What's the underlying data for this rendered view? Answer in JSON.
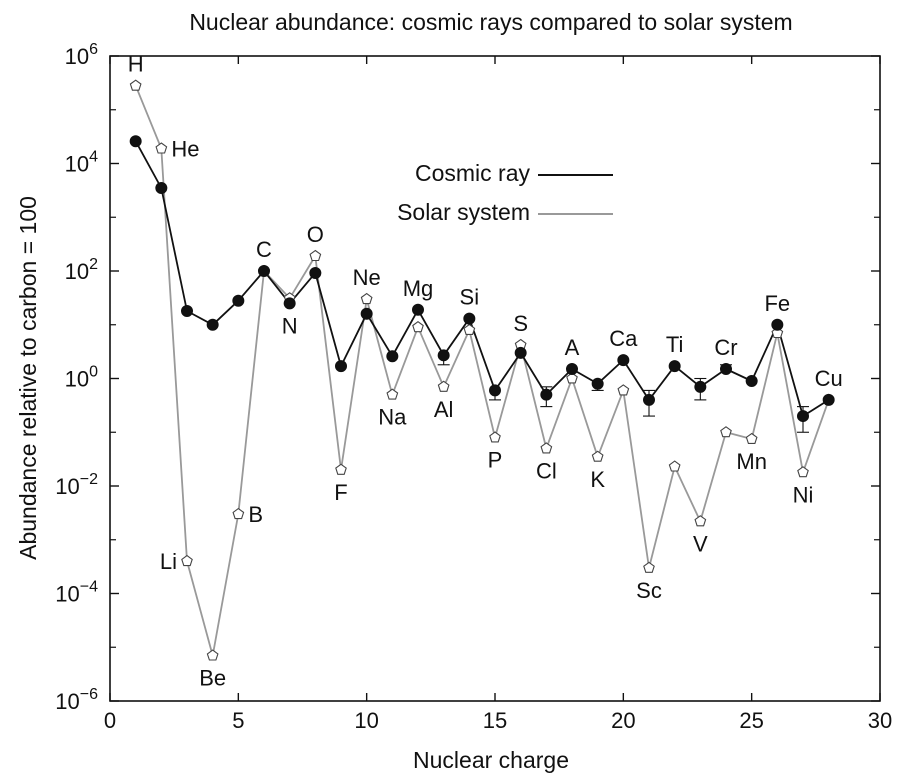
{
  "chart_data": {
    "type": "line",
    "title": "Nuclear abundance: cosmic rays compared to solar system",
    "xlabel": "Nuclear charge",
    "ylabel": "Abundance relative to carbon = 100",
    "xlim": [
      0,
      30
    ],
    "ylim": [
      1e-06,
      1000000.0
    ],
    "yscale": "log",
    "x_ticks": [
      0,
      5,
      10,
      15,
      20,
      25,
      30
    ],
    "y_ticks": [
      {
        "base": "10",
        "exp": "−6",
        "value": 1e-06
      },
      {
        "base": "10",
        "exp": "−4",
        "value": 0.0001
      },
      {
        "base": "10",
        "exp": "−2",
        "value": 0.01
      },
      {
        "base": "10",
        "exp": "0",
        "value": 1
      },
      {
        "base": "10",
        "exp": "2",
        "value": 100
      },
      {
        "base": "10",
        "exp": "4",
        "value": 10000.0
      },
      {
        "base": "10",
        "exp": "6",
        "value": 1000000.0
      }
    ],
    "legend": {
      "position": "top-center"
    },
    "series": [
      {
        "name": "Cosmic ray",
        "color": "#111111",
        "marker": "filled-circle",
        "x": [
          1,
          2,
          3,
          4,
          5,
          6,
          7,
          8,
          9,
          10,
          11,
          12,
          13,
          14,
          15,
          16,
          17,
          18,
          19,
          20,
          21,
          22,
          23,
          24,
          25,
          26,
          27,
          28
        ],
        "y": [
          26000,
          3500,
          18,
          10,
          28,
          100,
          25,
          92,
          1.7,
          16,
          2.6,
          19,
          2.7,
          13,
          0.6,
          3.0,
          0.5,
          1.5,
          0.8,
          2.2,
          0.4,
          1.7,
          0.7,
          1.5,
          0.9,
          10,
          0.2,
          0.4
        ],
        "yerr_low": [
          null,
          null,
          null,
          null,
          null,
          null,
          null,
          null,
          null,
          null,
          null,
          null,
          1.8,
          null,
          0.4,
          null,
          0.3,
          null,
          0.6,
          null,
          0.2,
          null,
          0.4,
          null,
          null,
          null,
          0.1,
          null
        ],
        "yerr_high": [
          null,
          null,
          null,
          null,
          null,
          null,
          null,
          null,
          null,
          null,
          null,
          null,
          null,
          null,
          null,
          null,
          0.7,
          null,
          null,
          null,
          0.6,
          null,
          1.0,
          1.8,
          null,
          null,
          0.3,
          null
        ]
      },
      {
        "name": "Solar system",
        "color": "#999999",
        "marker": "open-pentagon",
        "x": [
          1,
          2,
          3,
          4,
          5,
          6,
          7,
          8,
          9,
          10,
          11,
          12,
          13,
          14,
          15,
          16,
          17,
          18,
          19,
          20,
          21,
          22,
          23,
          24,
          25,
          26,
          27,
          28
        ],
        "y": [
          280000,
          19000,
          0.0004,
          7e-06,
          0.003,
          100,
          31,
          190,
          0.02,
          30,
          0.5,
          9,
          0.7,
          8,
          0.08,
          4.2,
          0.05,
          1,
          0.035,
          0.6,
          0.0003,
          0.023,
          0.0022,
          0.1,
          0.075,
          7,
          0.018,
          0.4
        ]
      }
    ],
    "element_labels": [
      {
        "text": "H",
        "x": 1,
        "y": 280000,
        "pos": "above"
      },
      {
        "text": "He",
        "x": 2,
        "y": 19000,
        "pos": "right"
      },
      {
        "text": "Li",
        "x": 3,
        "y": 0.0004,
        "pos": "left"
      },
      {
        "text": "Be",
        "x": 4,
        "y": 7e-06,
        "pos": "below"
      },
      {
        "text": "B",
        "x": 5,
        "y": 0.003,
        "pos": "right"
      },
      {
        "text": "C",
        "x": 6,
        "y": 100,
        "pos": "above"
      },
      {
        "text": "N",
        "x": 7,
        "y": 25,
        "pos": "below"
      },
      {
        "text": "O",
        "x": 8,
        "y": 190,
        "pos": "above"
      },
      {
        "text": "F",
        "x": 9,
        "y": 0.02,
        "pos": "below"
      },
      {
        "text": "Ne",
        "x": 10,
        "y": 30,
        "pos": "above"
      },
      {
        "text": "Na",
        "x": 11,
        "y": 0.5,
        "pos": "below"
      },
      {
        "text": "Mg",
        "x": 12,
        "y": 19,
        "pos": "above"
      },
      {
        "text": "Al",
        "x": 13,
        "y": 0.7,
        "pos": "below"
      },
      {
        "text": "Si",
        "x": 14,
        "y": 13,
        "pos": "above"
      },
      {
        "text": "P",
        "x": 15,
        "y": 0.08,
        "pos": "below"
      },
      {
        "text": "S",
        "x": 16,
        "y": 4.2,
        "pos": "above"
      },
      {
        "text": "Cl",
        "x": 17,
        "y": 0.05,
        "pos": "below"
      },
      {
        "text": "A",
        "x": 18,
        "y": 1.5,
        "pos": "above"
      },
      {
        "text": "K",
        "x": 19,
        "y": 0.035,
        "pos": "below"
      },
      {
        "text": "Ca",
        "x": 20,
        "y": 2.2,
        "pos": "above"
      },
      {
        "text": "Sc",
        "x": 21,
        "y": 0.0003,
        "pos": "below"
      },
      {
        "text": "Ti",
        "x": 22,
        "y": 1.7,
        "pos": "above"
      },
      {
        "text": "V",
        "x": 23,
        "y": 0.0022,
        "pos": "below"
      },
      {
        "text": "Cr",
        "x": 24,
        "y": 1.5,
        "pos": "above"
      },
      {
        "text": "Mn",
        "x": 25,
        "y": 0.075,
        "pos": "below"
      },
      {
        "text": "Fe",
        "x": 26,
        "y": 10,
        "pos": "above"
      },
      {
        "text": "Ni",
        "x": 27,
        "y": 0.018,
        "pos": "below"
      },
      {
        "text": "Cu",
        "x": 28,
        "y": 0.4,
        "pos": "above"
      }
    ]
  }
}
